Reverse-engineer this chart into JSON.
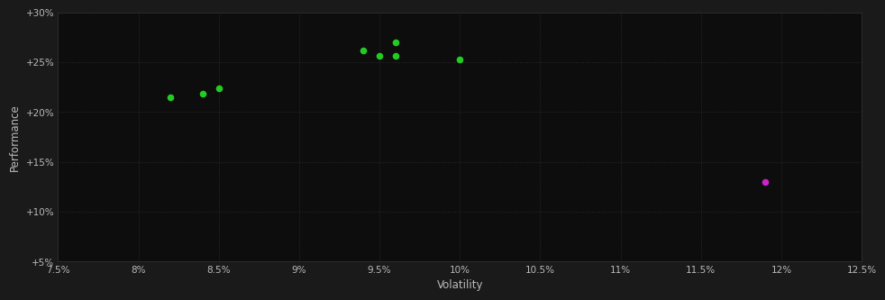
{
  "background_color": "#1a1a1a",
  "plot_bg_color": "#0d0d0d",
  "grid_color": "#2a2a2a",
  "text_color": "#bbbbbb",
  "xlabel": "Volatility",
  "ylabel": "Performance",
  "xlim": [
    0.075,
    0.125
  ],
  "ylim": [
    0.05,
    0.3
  ],
  "xticks": [
    0.075,
    0.08,
    0.085,
    0.09,
    0.095,
    0.1,
    0.105,
    0.11,
    0.115,
    0.12,
    0.125
  ],
  "yticks": [
    0.05,
    0.1,
    0.15,
    0.2,
    0.25,
    0.3
  ],
  "green_points": [
    [
      0.082,
      0.215
    ],
    [
      0.084,
      0.218
    ],
    [
      0.085,
      0.224
    ],
    [
      0.094,
      0.262
    ],
    [
      0.095,
      0.256
    ],
    [
      0.096,
      0.256
    ],
    [
      0.096,
      0.27
    ],
    [
      0.1,
      0.253
    ]
  ],
  "magenta_points": [
    [
      0.119,
      0.13
    ]
  ],
  "green_color": "#22cc22",
  "magenta_color": "#cc22cc",
  "marker_size": 30,
  "tick_fontsize": 7.5,
  "label_fontsize": 8.5,
  "spine_color": "#333333"
}
